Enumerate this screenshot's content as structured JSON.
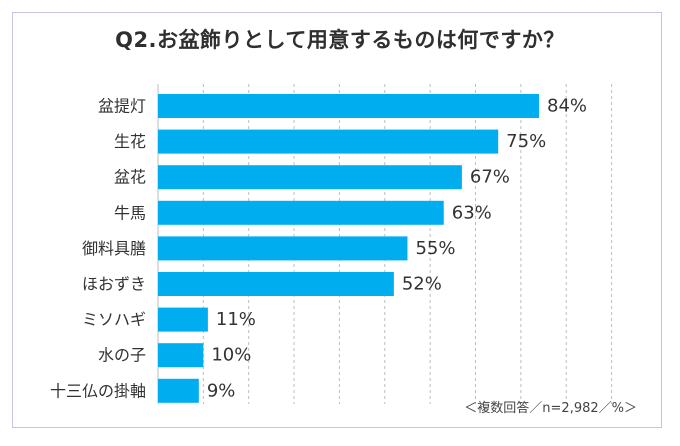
{
  "chart_data": {
    "type": "bar",
    "orientation": "horizontal",
    "title": "Q2.お盆飾りとして用意するものは何ですか？",
    "categories": [
      "盆提灯",
      "生花",
      "盆花",
      "牛馬",
      "御料具膳",
      "ほおずき",
      "ミソハギ",
      "水の子",
      "十三仏の掛軸"
    ],
    "values": [
      84,
      75,
      67,
      63,
      55,
      52,
      11,
      10,
      9
    ],
    "value_labels": [
      "84%",
      "75%",
      "67%",
      "63%",
      "55%",
      "52%",
      "11%",
      "10%",
      "9%"
    ],
    "xlim": [
      0,
      100
    ],
    "grid": "vertical dashed",
    "bar_color": "#00aeef",
    "note": "＜複数回答／n=2,982／%＞"
  }
}
